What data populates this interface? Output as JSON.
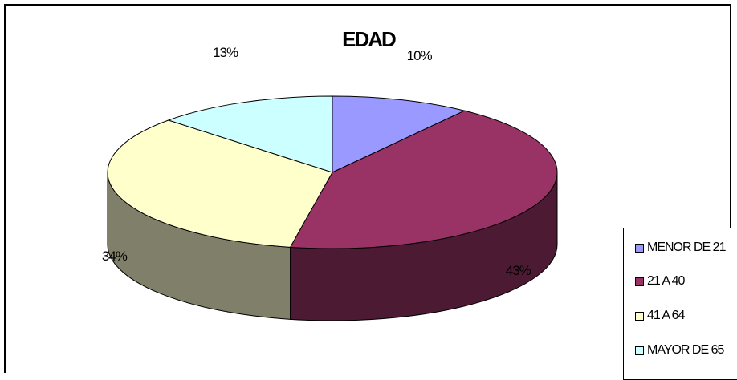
{
  "chart_data": {
    "type": "pie",
    "title": "EDAD",
    "categories": [
      "MENOR DE 21",
      "21 A 40",
      "41 A 64",
      "MAYOR DE 65"
    ],
    "values": [
      10,
      43,
      34,
      13
    ],
    "value_labels": [
      "10%",
      "43%",
      "34%",
      "13%"
    ],
    "colors": [
      "#9999ff",
      "#993366",
      "#ffffcc",
      "#ccffff"
    ],
    "side_colors": [
      "#5f5fa0",
      "#4d1a33",
      "#80806a",
      "#6a8080"
    ],
    "legend_position": "right",
    "style": "3d"
  }
}
